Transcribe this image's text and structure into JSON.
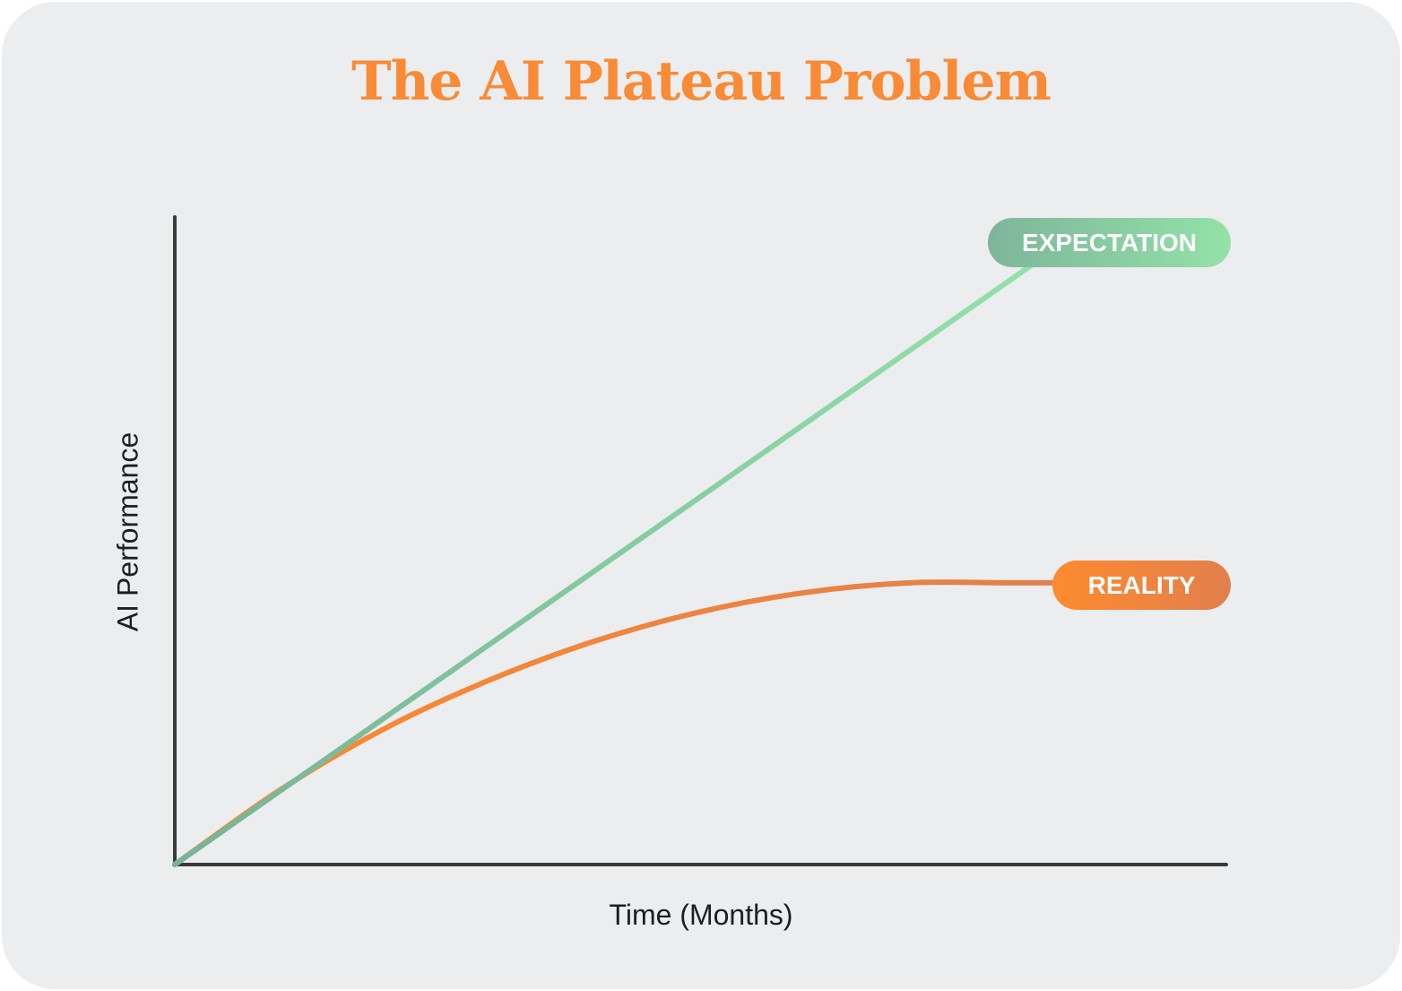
{
  "title": "The AI Plateau Problem",
  "colors": {
    "background": "#ecedef",
    "title": "#f98b36",
    "axis": "#3a3a3a",
    "axis_label": "#1b1f23",
    "expectation_start": "#77b398",
    "expectation_end": "#93e2a9",
    "reality_start": "#fd8b2f",
    "reality_end": "#e27f4c"
  },
  "chart_data": {
    "type": "line",
    "title": "The AI Plateau Problem",
    "xlabel": "Time (Months)",
    "ylabel": "AI Performance",
    "xlim": [
      0,
      100
    ],
    "ylim": [
      0,
      100
    ],
    "grid": false,
    "ticks": false,
    "series": [
      {
        "name": "EXPECTATION",
        "x": [
          0,
          82
        ],
        "y": [
          0,
          93
        ]
      },
      {
        "name": "REALITY",
        "x": [
          0,
          10,
          20,
          30,
          40,
          50,
          60,
          70,
          80,
          90
        ],
        "y": [
          0,
          11.5,
          21,
          28.5,
          34.5,
          39,
          42,
          43.5,
          43.5,
          43.5
        ]
      }
    ]
  }
}
